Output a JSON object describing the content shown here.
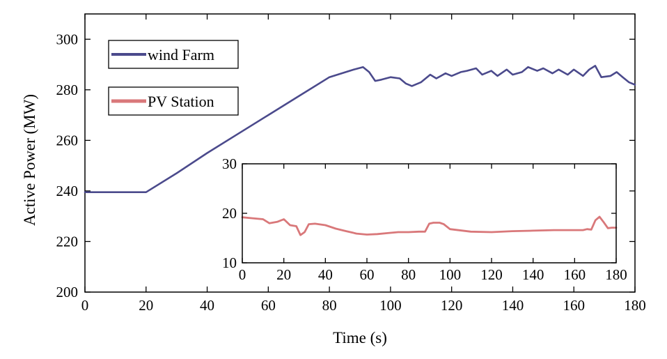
{
  "chart_data": [
    {
      "type": "line",
      "xlabel": "Time (s)",
      "ylabel": "Active Power (MW)",
      "xlim": [
        0,
        180
      ],
      "ylim": [
        200,
        310
      ],
      "xticks": [
        0,
        20,
        40,
        60,
        80,
        100,
        120,
        140,
        160,
        180
      ],
      "yticks": [
        200,
        220,
        240,
        260,
        280,
        300
      ],
      "grid": false,
      "legend": "top-left",
      "legend_entries": [
        "wind Farm",
        "PV Station"
      ],
      "series": [
        {
          "name": "wind Farm",
          "color": "#4b4a8c",
          "x": [
            0,
            20,
            30,
            40,
            50,
            60,
            70,
            80,
            88,
            91,
            93,
            95,
            97,
            100,
            103,
            105,
            107,
            110,
            113,
            115,
            118,
            120,
            123,
            125,
            128,
            130,
            133,
            135,
            138,
            140,
            143,
            145,
            148,
            150,
            153,
            155,
            158,
            160,
            163,
            165,
            167,
            169,
            172,
            174,
            176,
            178,
            180
          ],
          "y": [
            239.5,
            239.5,
            247,
            255,
            262.5,
            270,
            277.5,
            285,
            288,
            289,
            287,
            283.5,
            284,
            285,
            284.5,
            282.5,
            281.5,
            283,
            286,
            284.5,
            286.5,
            285.5,
            287,
            287.5,
            288.5,
            286,
            287.5,
            285.5,
            288,
            286,
            287,
            289,
            287.5,
            288.5,
            286.5,
            288,
            286,
            288,
            285.5,
            288,
            289.5,
            285,
            285.5,
            287,
            285,
            283,
            282
          ]
        }
      ]
    },
    {
      "type": "line",
      "placement": "inset",
      "xlim": [
        0,
        180
      ],
      "ylim": [
        10,
        30
      ],
      "xticks": [
        0,
        20,
        40,
        60,
        80,
        100,
        120,
        140,
        160,
        180
      ],
      "yticks": [
        10,
        20,
        30
      ],
      "series": [
        {
          "name": "PV Station",
          "color": "#d9787a",
          "x": [
            0,
            5,
            10,
            13,
            17,
            20,
            23,
            26,
            28,
            30,
            32,
            35,
            40,
            45,
            50,
            55,
            60,
            65,
            70,
            75,
            80,
            85,
            88,
            90,
            92,
            95,
            97,
            100,
            110,
            120,
            130,
            140,
            150,
            160,
            164,
            166,
            168,
            170,
            172,
            174,
            176,
            178,
            180
          ],
          "y": [
            19.2,
            19.0,
            18.8,
            18.0,
            18.3,
            18.8,
            17.6,
            17.4,
            15.6,
            16.2,
            17.8,
            17.9,
            17.6,
            16.9,
            16.4,
            15.9,
            15.7,
            15.8,
            16.0,
            16.2,
            16.2,
            16.3,
            16.3,
            17.9,
            18.1,
            18.1,
            17.8,
            16.8,
            16.3,
            16.2,
            16.4,
            16.5,
            16.6,
            16.6,
            16.6,
            16.8,
            16.7,
            18.6,
            19.3,
            18.2,
            17.0,
            17.1,
            17.1
          ]
        }
      ]
    }
  ],
  "colors": {
    "wind": "#4b4a8c",
    "pv": "#d9787a",
    "axis": "#000000"
  }
}
